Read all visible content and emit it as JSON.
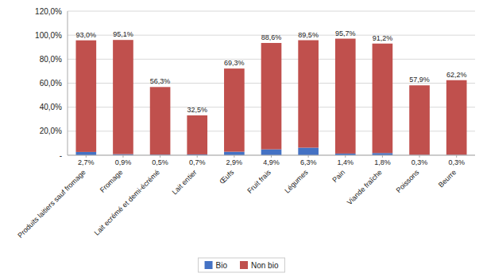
{
  "chart_data": {
    "type": "bar",
    "stacked": true,
    "categories": [
      "Produits laitiers sauf fromage",
      "Fromage",
      "Lait ecrémé et demi-écrémé",
      "Lait entier",
      "Œufs",
      "Fruit frais",
      "Légumes",
      "Pain",
      "Viande fraîche",
      "Poissons",
      "Beurre"
    ],
    "series": [
      {
        "name": "Bio",
        "color": "#4472C4",
        "values": [
          2.7,
          0.9,
          0.5,
          0.7,
          2.9,
          4.9,
          6.3,
          1.4,
          1.8,
          0.3,
          0.3
        ],
        "value_labels": [
          "2,7%",
          "0,9%",
          "0,5%",
          "0,7%",
          "2,9%",
          "4,9%",
          "6,3%",
          "1,4%",
          "1,8%",
          "0,3%",
          "0,3%"
        ]
      },
      {
        "name": "Non bio",
        "color": "#C0504D",
        "values": [
          93.0,
          95.1,
          56.3,
          32.5,
          69.3,
          88.6,
          89.5,
          95.7,
          91.2,
          57.9,
          62.2
        ],
        "value_labels": [
          "93,0%",
          "95,1%",
          "56,3%",
          "32,5%",
          "69,3%",
          "88,6%",
          "89,5%",
          "95,7%",
          "91,2%",
          "57,9%",
          "62,2%"
        ]
      }
    ],
    "ylim": [
      0,
      120
    ],
    "yticks": [
      {
        "value": 0,
        "label": "-"
      },
      {
        "value": 20,
        "label": "20,0%"
      },
      {
        "value": 40,
        "label": "40,0%"
      },
      {
        "value": 60,
        "label": "60,0%"
      },
      {
        "value": 80,
        "label": "80,0%"
      },
      {
        "value": 100,
        "label": "100,0%"
      },
      {
        "value": 120,
        "label": "120,0%"
      }
    ],
    "grid": true,
    "legend": "bottom",
    "data_labels": true
  }
}
